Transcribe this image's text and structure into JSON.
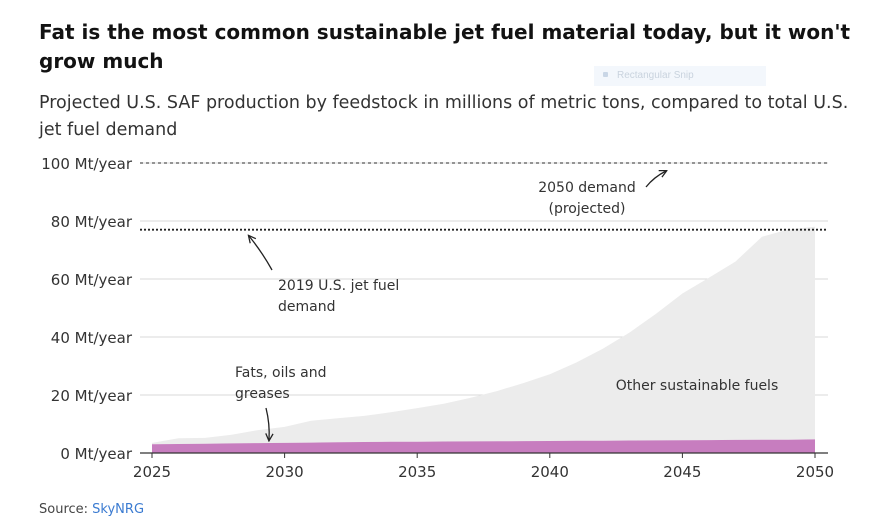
{
  "headline": "Fat is the most common sustainable jet fuel material today, but it won't grow much",
  "subhead": "Projected U.S. SAF production by feedstock in millions of metric tons, compared to total U.S. jet fuel demand",
  "overlay": {
    "snip_label": "Rectangular Snip"
  },
  "source": {
    "label": "Source:",
    "link_text": "SkyNRG"
  },
  "colors": {
    "fats": "#c77dbf",
    "other": "#ececec",
    "grid": "#d8d8d8",
    "text": "#333333",
    "link": "#3b7bd1"
  },
  "chart_data": {
    "type": "area",
    "x": [
      2025,
      2026,
      2027,
      2028,
      2029,
      2030,
      2031,
      2032,
      2033,
      2034,
      2035,
      2036,
      2037,
      2038,
      2039,
      2040,
      2041,
      2042,
      2043,
      2044,
      2045,
      2046,
      2047,
      2048,
      2049,
      2050
    ],
    "series": [
      {
        "name": "Fats, oils and greases",
        "values": [
          3.0,
          3.1,
          3.2,
          3.3,
          3.4,
          3.5,
          3.6,
          3.7,
          3.8,
          3.85,
          3.9,
          3.95,
          4.0,
          4.05,
          4.1,
          4.15,
          4.2,
          4.25,
          4.3,
          4.35,
          4.4,
          4.45,
          4.5,
          4.55,
          4.6,
          4.7
        ]
      },
      {
        "name": "Other sustainable fuels",
        "values": [
          0.5,
          2.0,
          2.0,
          3.0,
          4.5,
          5.5,
          7.5,
          8.3,
          9.0,
          10.2,
          11.6,
          13.0,
          15.0,
          17.3,
          20.0,
          23.0,
          27.0,
          31.7,
          37.2,
          43.6,
          50.6,
          56.0,
          61.5,
          70.0,
          72.5,
          73.3
        ]
      }
    ],
    "reference_lines": [
      {
        "name": "2019 U.S. jet fuel demand",
        "value": 77
      },
      {
        "name": "2050 demand (projected)",
        "value": 100
      }
    ],
    "annotations": {
      "demand_2050": [
        "2050 demand",
        "(projected)"
      ],
      "demand_2019": [
        "2019 U.S. jet fuel",
        "demand"
      ],
      "fats": [
        "Fats, oils and",
        "greases"
      ],
      "other": "Other sustainable fuels"
    },
    "ylim": [
      0,
      100
    ],
    "yticks": [
      0,
      20,
      40,
      60,
      80,
      100
    ],
    "ytick_labels": [
      "0 Mt/year",
      "20 Mt/year",
      "40 Mt/year",
      "60 Mt/year",
      "80 Mt/year",
      "100 Mt/year"
    ],
    "xticks": [
      2025,
      2030,
      2035,
      2040,
      2045,
      2050
    ],
    "xtick_labels": [
      "2025",
      "2030",
      "2035",
      "2040",
      "2045",
      "2050"
    ],
    "grid": true
  }
}
